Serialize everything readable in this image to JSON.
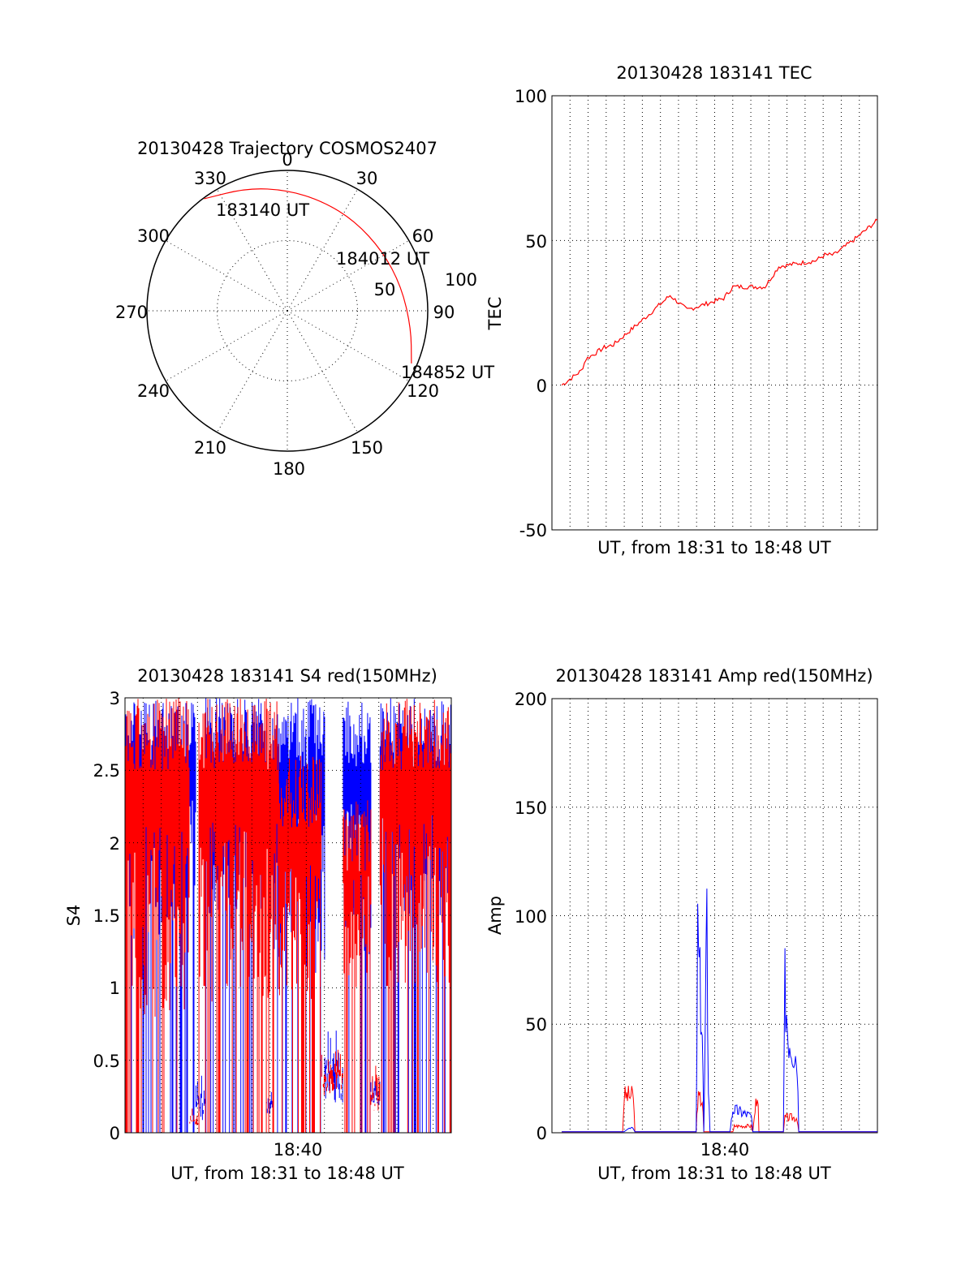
{
  "colors": {
    "red": "#ff0000",
    "blue": "#0000ff",
    "axis": "#000000",
    "background": "#ffffff"
  },
  "chart_data": [
    {
      "id": "trajectory",
      "type": "polar",
      "title": "20130428 Trajectory COSMOS2407",
      "azimuth_labels": [
        "0",
        "30",
        "60",
        "90",
        "120",
        "150",
        "180",
        "210",
        "240",
        "270",
        "300",
        "330"
      ],
      "elevation_labels": [
        "50",
        "100"
      ],
      "series": [
        {
          "color": "#ff0000",
          "points_zenith_azimuth": [
            [
              99.4,
              323.4
            ],
            [
              92,
              342
            ],
            [
              86,
              0
            ],
            [
              82,
              18
            ],
            [
              80,
              37
            ],
            [
              80,
              58
            ],
            [
              83,
              78
            ],
            [
              89,
              98
            ],
            [
              96,
              113
            ]
          ]
        }
      ],
      "annotations": [
        "183140 UT",
        "184012 UT",
        "184852 UT"
      ]
    },
    {
      "id": "tec",
      "type": "line",
      "title": "20130428 183141 TEC",
      "xlabel": "UT, from 18:31 to 18:48 UT",
      "ylabel": "TEC",
      "ylim": [
        -50,
        100
      ],
      "yticks": [
        "100",
        "50",
        "0",
        "-50"
      ],
      "x_range_minutes": [
        18.52,
        18.81
      ],
      "series": [
        {
          "color": "#ff0000",
          "x": [
            "18:31:41",
            "18:32:45",
            "18:33:00",
            "18:34:00",
            "18:34:30",
            "18:36:10",
            "18:37:35",
            "18:38:30",
            "18:40:30",
            "18:41:00",
            "18:42:45",
            "18:43:30",
            "18:45:30",
            "18:46:00",
            "18:46:30",
            "18:47:45",
            "18:48:52"
          ],
          "y": [
            0,
            5,
            9,
            13,
            14,
            23,
            31,
            26,
            30,
            34,
            34,
            41,
            43,
            45,
            45,
            51,
            57
          ]
        }
      ]
    },
    {
      "id": "s4",
      "type": "line",
      "title": "20130428 183141 S4 red(150MHz)",
      "xlabel": "UT, from 18:31 to 18:48 UT",
      "ylabel": "S4",
      "ylim": [
        0,
        3
      ],
      "yticks": [
        "3",
        "2.5",
        "2",
        "1.5",
        "1",
        "0.5",
        "0"
      ],
      "xticks": [
        "18:40"
      ],
      "series": [
        {
          "color": "#0000ff",
          "segments": [
            {
              "from": "18:31:09",
              "to": "18:35:00",
              "low": 1.3,
              "high": 3.0
            },
            {
              "from": "18:35:00",
              "to": "18:35:30",
              "low": 0.08,
              "high": 0.4
            },
            {
              "from": "18:35:30",
              "to": "18:38:50",
              "low": 1.5,
              "high": 3.0
            },
            {
              "from": "18:38:50",
              "to": "18:39:10",
              "low": 0.12,
              "high": 0.3
            },
            {
              "from": "18:39:10",
              "to": "18:42:00",
              "low": 1.1,
              "high": 3.0
            },
            {
              "from": "18:42:00",
              "to": "18:43:00",
              "low": 0.2,
              "high": 0.75
            },
            {
              "from": "18:43:00",
              "to": "18:44:30",
              "low": 1.2,
              "high": 3.0
            },
            {
              "from": "18:44:30",
              "to": "18:45:00",
              "low": 0.18,
              "high": 0.4
            },
            {
              "from": "18:45:00",
              "to": "18:48:52",
              "low": 1.5,
              "high": 3.0
            }
          ]
        },
        {
          "color": "#ff0000",
          "segments": [
            {
              "from": "18:31:09",
              "to": "18:34:40",
              "low": 0.8,
              "high": 3.0
            },
            {
              "from": "18:34:40",
              "to": "18:35:10",
              "low": 0.05,
              "high": 0.2
            },
            {
              "from": "18:35:10",
              "to": "18:39:30",
              "low": 0.9,
              "high": 3.0
            },
            {
              "from": "18:39:30",
              "to": "18:41:50",
              "low": 0.9,
              "high": 2.6
            },
            {
              "from": "18:41:50",
              "to": "18:43:00",
              "low": 0.25,
              "high": 0.6
            },
            {
              "from": "18:43:00",
              "to": "18:44:30",
              "low": 1.0,
              "high": 2.3
            },
            {
              "from": "18:44:30",
              "to": "18:45:00",
              "low": 0.15,
              "high": 0.5
            },
            {
              "from": "18:45:00",
              "to": "18:48:52",
              "low": 1.0,
              "high": 3.0
            }
          ]
        }
      ]
    },
    {
      "id": "amp",
      "type": "line",
      "title": "20130428 183141 Amp red(150MHz)",
      "xlabel": "UT, from 18:31 to 18:48 UT",
      "ylabel": "Amp",
      "ylim": [
        0,
        200
      ],
      "yticks": [
        "200",
        "150",
        "100",
        "50",
        "0"
      ],
      "xticks": [
        "18:40"
      ],
      "series": [
        {
          "color": "#ff0000",
          "x": [
            "18:31:41",
            "18:35:00",
            "18:35:05",
            "18:35:35",
            "18:35:40",
            "18:39:00",
            "18:39:05",
            "18:39:20",
            "18:39:25",
            "18:41:00",
            "18:41:05",
            "18:42:00",
            "18:42:05",
            "18:42:20",
            "18:42:25",
            "18:43:45",
            "18:43:50",
            "18:44:30",
            "18:44:35",
            "18:48:52"
          ],
          "y": [
            0.5,
            0.5,
            22,
            22,
            0.5,
            0.5,
            20,
            20,
            0.5,
            0.5,
            4,
            4,
            0.5,
            26,
            0.5,
            0.5,
            9,
            9,
            0.5,
            0.5
          ]
        },
        {
          "color": "#0000ff",
          "x": [
            "18:31:41",
            "18:35:05",
            "18:35:30",
            "18:35:40",
            "18:39:00",
            "18:39:05",
            "18:39:20",
            "18:39:25",
            "18:39:35",
            "18:39:40",
            "18:39:45",
            "18:40:50",
            "18:41:00",
            "18:42:00",
            "18:42:05",
            "18:43:45",
            "18:43:50",
            "18:44:00",
            "18:44:30",
            "18:44:35",
            "18:48:52"
          ],
          "y": [
            0.5,
            0.5,
            3,
            0.5,
            0.5,
            115,
            60,
            0.5,
            122,
            30,
            0.5,
            0.5,
            14,
            10,
            0.5,
            0.5,
            88,
            60,
            45,
            0.5,
            0.5
          ]
        }
      ]
    }
  ]
}
